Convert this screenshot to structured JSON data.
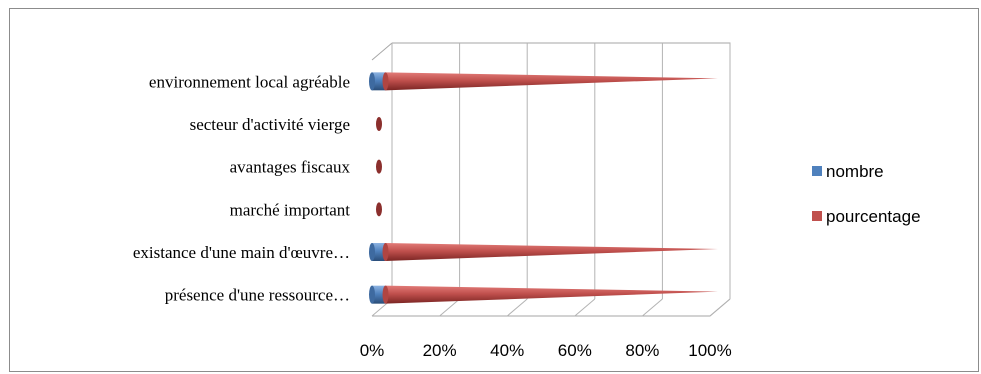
{
  "chart_data": {
    "type": "bar",
    "orientation": "horizontal",
    "style": "3d-cone",
    "stacked": "percent",
    "categories": [
      "présence d'une ressource…",
      "existance d'une main d'œuvre…",
      "marché important",
      "avantages fiscaux",
      "secteur d'activité vierge",
      "environnement local agréable"
    ],
    "series": [
      {
        "name": "nombre",
        "color": "#4f81bd",
        "values": [
          4,
          4,
          0,
          0,
          0,
          4
        ]
      },
      {
        "name": "pourcentage",
        "color": "#c0504d",
        "values": [
          96,
          96,
          0,
          0,
          0,
          96
        ]
      }
    ],
    "x_ticks": [
      "0%",
      "20%",
      "40%",
      "60%",
      "80%",
      "100%"
    ],
    "xlim": [
      0,
      100
    ],
    "grid": true,
    "legend": "right"
  }
}
